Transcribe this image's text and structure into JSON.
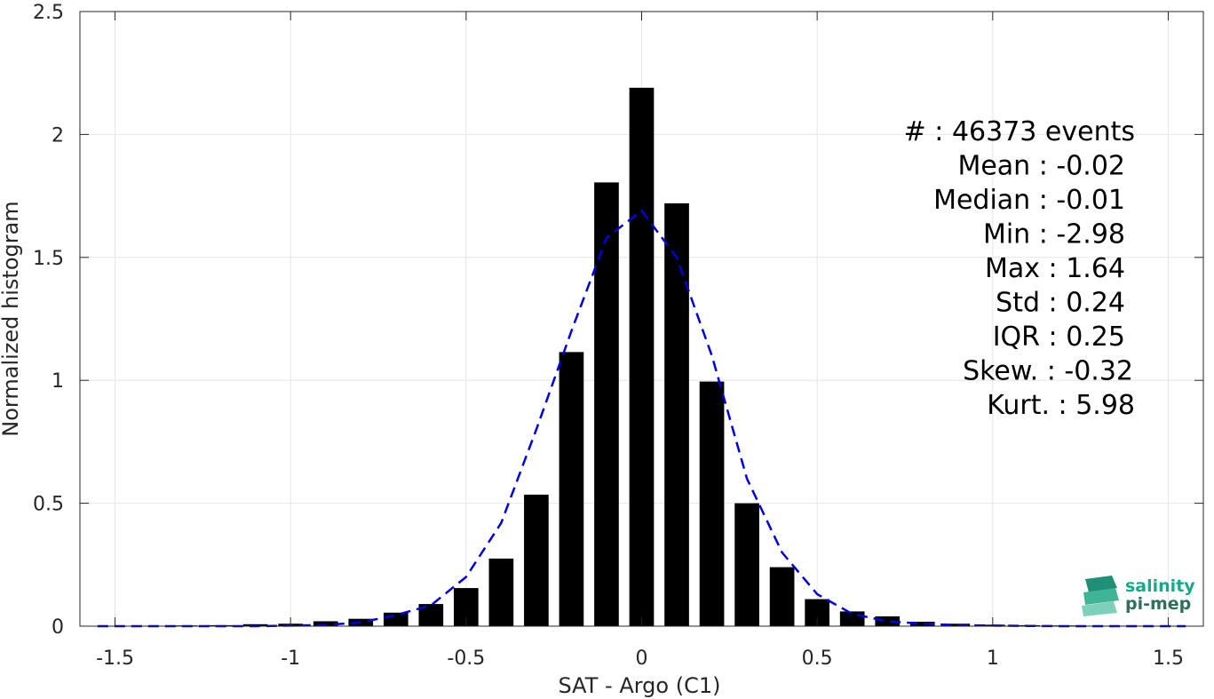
{
  "chart_data": {
    "type": "bar",
    "title": "",
    "xlabel": "SAT - Argo (C1)",
    "ylabel": "Normalized histogram",
    "xlim": [
      -1.6,
      1.6
    ],
    "ylim": [
      0,
      2.5
    ],
    "xticks": [
      -1.5,
      -1,
      -0.5,
      0,
      0.5,
      1,
      1.5
    ],
    "xtick_labels": [
      "-1.5",
      "-1",
      "-0.5",
      "0",
      "0.5",
      "1",
      "1.5"
    ],
    "yticks": [
      0,
      0.5,
      1,
      1.5,
      2,
      2.5
    ],
    "ytick_labels": [
      "0",
      "0.5",
      "1",
      "1.5",
      "2",
      "2.5"
    ],
    "grid": true,
    "bar_color": "#000000",
    "bar_width": 0.07,
    "bars": {
      "x": [
        -1.5,
        -1.4,
        -1.3,
        -1.2,
        -1.1,
        -1.0,
        -0.9,
        -0.8,
        -0.7,
        -0.6,
        -0.5,
        -0.4,
        -0.3,
        -0.2,
        -0.1,
        0.0,
        0.1,
        0.2,
        0.3,
        0.4,
        0.5,
        0.6,
        0.7,
        0.8,
        0.9,
        1.0,
        1.1,
        1.2,
        1.3,
        1.4,
        1.5
      ],
      "values": [
        0.001,
        0.002,
        0.003,
        0.004,
        0.008,
        0.01,
        0.02,
        0.03,
        0.055,
        0.09,
        0.155,
        0.275,
        0.535,
        1.115,
        1.805,
        2.19,
        1.72,
        0.995,
        0.5,
        0.24,
        0.11,
        0.06,
        0.04,
        0.018,
        0.01,
        0.006,
        0.004,
        0.003,
        0.002,
        0.002,
        0.001
      ]
    },
    "fit_curve": {
      "style": "dashed",
      "color": "#0000dd",
      "x": [
        -1.55,
        -1.4,
        -1.3,
        -1.2,
        -1.1,
        -1.0,
        -0.9,
        -0.8,
        -0.7,
        -0.6,
        -0.5,
        -0.4,
        -0.3,
        -0.2,
        -0.1,
        0.0,
        0.1,
        0.2,
        0.3,
        0.4,
        0.5,
        0.6,
        0.7,
        0.8,
        0.9,
        1.0,
        1.1,
        1.2,
        1.3,
        1.4,
        1.55
      ],
      "values": [
        0,
        0,
        0,
        0,
        0,
        0.002,
        0.005,
        0.015,
        0.045,
        0.085,
        0.2,
        0.42,
        0.8,
        1.2,
        1.58,
        1.69,
        1.5,
        1.1,
        0.6,
        0.3,
        0.13,
        0.05,
        0.02,
        0.01,
        0.004,
        0.002,
        0.001,
        0,
        0,
        0,
        0
      ]
    }
  },
  "stats": [
    "#  : 46373 events",
    "Mean : -0.02",
    "Median : -0.01",
    "Min : -2.98",
    "Max : 1.64",
    "Std : 0.24",
    "IQR : 0.25",
    "Skew. : -0.32",
    "Kurt. : 5.98"
  ],
  "logo": {
    "line1": "salinity",
    "line2": "pi-mep",
    "color1": "#1aa88a",
    "color2": "#2f6f5f"
  }
}
